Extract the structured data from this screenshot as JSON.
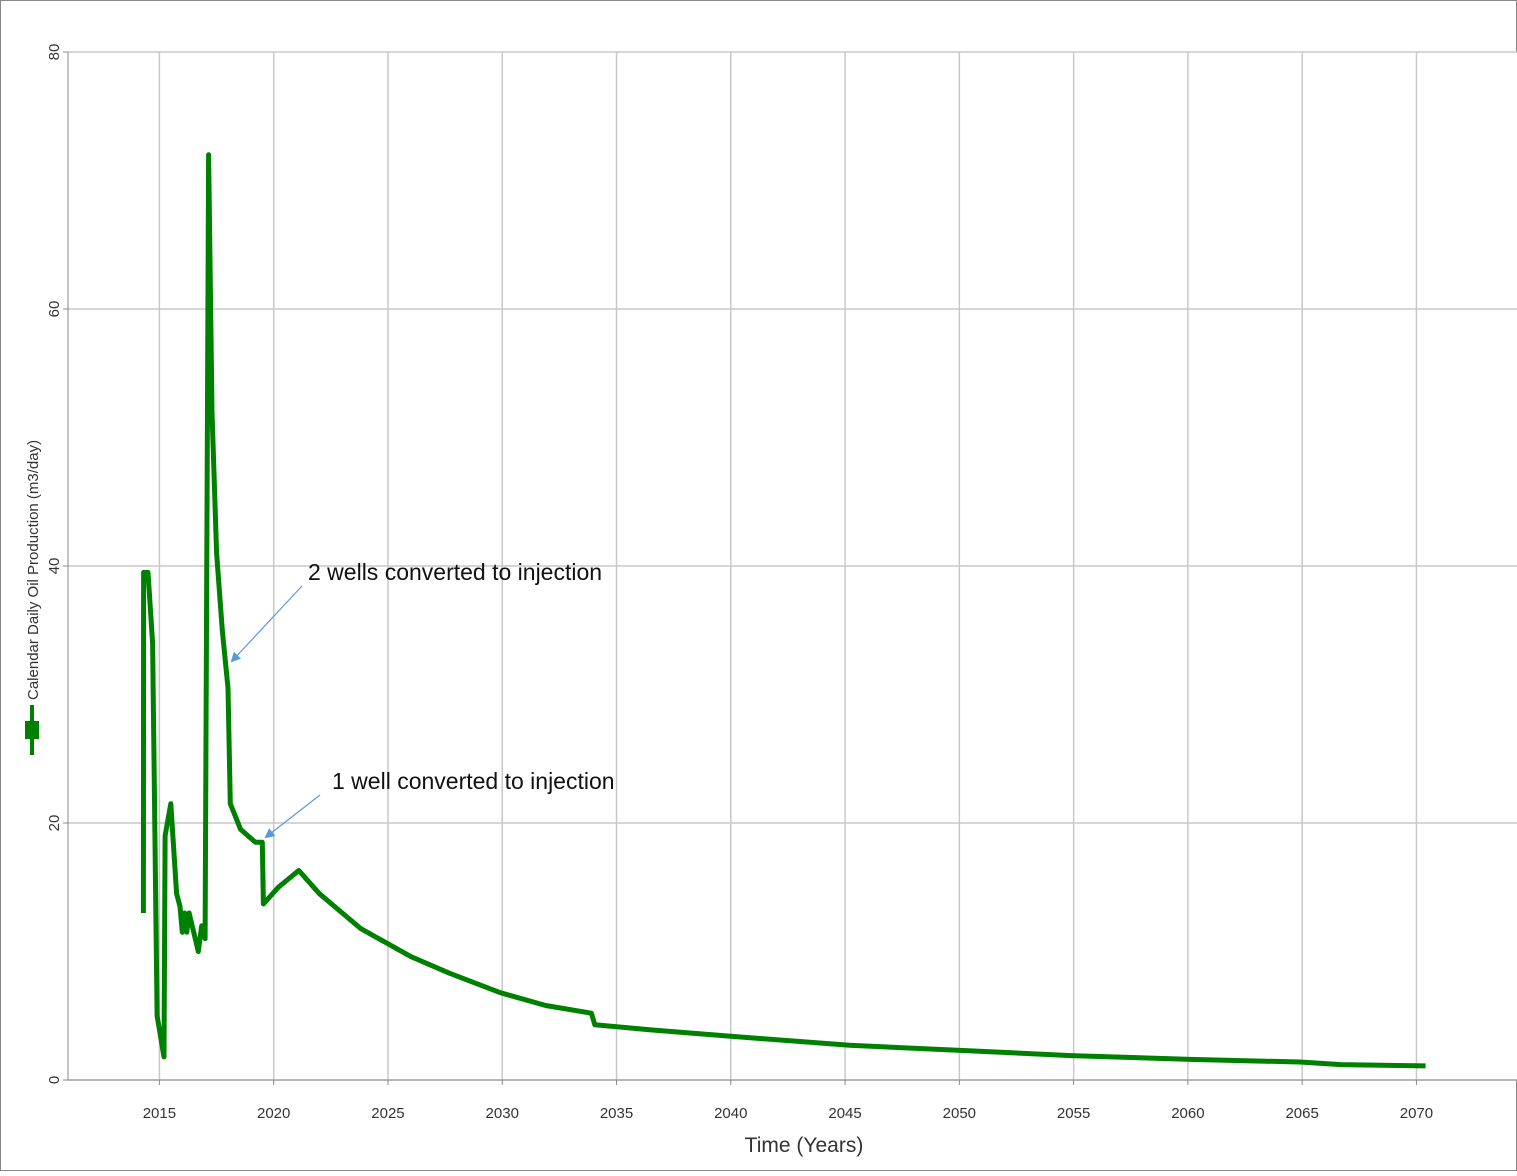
{
  "chart_data": {
    "type": "line",
    "x_label": "Time (Years)",
    "xlim": [
      2011,
      2074.4
    ],
    "xticks": [
      2015,
      2020,
      2025,
      2030,
      2035,
      2040,
      2045,
      2050,
      2055,
      2060,
      2065,
      2070
    ],
    "ylim": [
      0,
      80
    ],
    "yticks": [
      0,
      20,
      40,
      60,
      80
    ],
    "grid": true,
    "annotations": [
      "2 wells converted to injection",
      "1 well converted to injection"
    ],
    "series": [
      {
        "name": "Calendar Daily Oil Production (m3/day)",
        "color": "#008000",
        "x": [
          2014.3,
          2014.31,
          2014.5,
          2014.7,
          2014.9,
          2015.2,
          2015.25,
          2015.5,
          2015.75,
          2015.9,
          2016.0,
          2016.1,
          2016.2,
          2016.3,
          2016.5,
          2016.7,
          2016.85,
          2017.0,
          2017.15,
          2017.3,
          2017.5,
          2017.75,
          2018.0,
          2018.1,
          2018.55,
          2019.2,
          2019.5,
          2019.55,
          2020.2,
          2020.75,
          2021.1,
          2022.0,
          2023.8,
          2026.0,
          2027.7,
          2029.9,
          2031.9,
          2033.9,
          2034.05,
          2036.5,
          2040.0,
          2045.2,
          2050.05,
          2054.9,
          2060.1,
          2064.9,
          2066.7,
          2070.4
        ],
        "values": [
          13,
          39.5,
          39.5,
          34,
          5,
          1.8,
          19,
          21.5,
          14.5,
          13.5,
          11.5,
          13,
          11.5,
          13,
          11.5,
          10,
          12,
          11,
          72,
          52,
          41,
          35,
          30.5,
          21.5,
          19.5,
          18.5,
          18.5,
          13.7,
          15,
          15.8,
          16.3,
          14.5,
          11.8,
          9.6,
          8.3,
          6.8,
          5.8,
          5.2,
          4.3,
          3.9,
          3.4,
          2.7,
          2.3,
          1.9,
          1.6,
          1.4,
          1.2,
          1.1
        ]
      }
    ]
  }
}
